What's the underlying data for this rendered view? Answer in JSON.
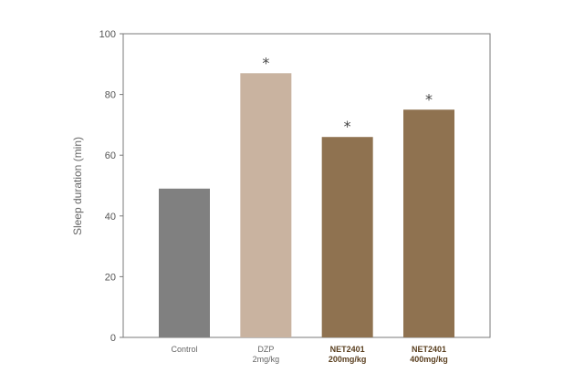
{
  "chart_data": {
    "type": "bar",
    "categories": [
      {
        "lines": [
          "Control"
        ],
        "bold": false
      },
      {
        "lines": [
          "DZP",
          "2mg/kg"
        ],
        "bold": false
      },
      {
        "lines": [
          "NET2401",
          "200mg/kg"
        ],
        "bold": true
      },
      {
        "lines": [
          "NET2401",
          "400mg/kg"
        ],
        "bold": true
      }
    ],
    "values": [
      49,
      87,
      66,
      75
    ],
    "colors": [
      "#808080",
      "#c9b3a0",
      "#8f7250",
      "#8f7250"
    ],
    "annotations": [
      "",
      "*",
      "*",
      "*"
    ],
    "ylabel": "Sleep duration (min)",
    "ylim": [
      0,
      100
    ],
    "yticks": [
      0,
      20,
      40,
      60,
      80,
      100
    ],
    "grid": false
  }
}
